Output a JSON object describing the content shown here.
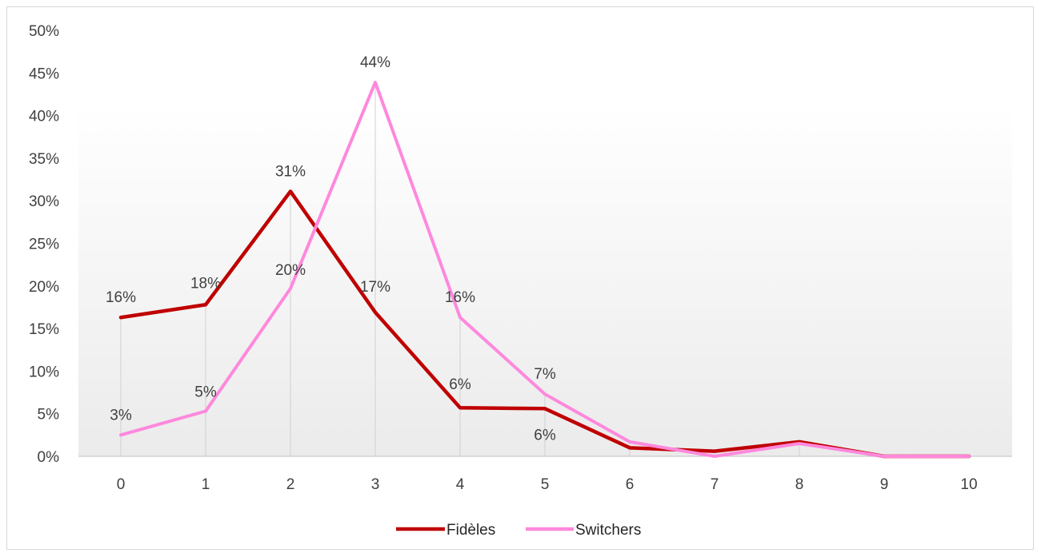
{
  "chart_data": {
    "type": "line",
    "title": "",
    "xlabel": "",
    "ylabel": "",
    "x": [
      0,
      1,
      2,
      3,
      4,
      5,
      6,
      7,
      8,
      9,
      10
    ],
    "x_tick_labels": [
      "0",
      "1",
      "2",
      "3",
      "4",
      "5",
      "6",
      "7",
      "8",
      "9",
      "10"
    ],
    "ylim": [
      0,
      50
    ],
    "y_ticks": [
      0,
      5,
      10,
      15,
      20,
      25,
      30,
      35,
      40,
      45,
      50
    ],
    "y_tick_labels": [
      "0%",
      "5%",
      "10%",
      "15%",
      "20%",
      "25%",
      "30%",
      "35%",
      "40%",
      "45%",
      "50%"
    ],
    "grid": false,
    "drop_lines": true,
    "legend_position": "bottom",
    "series": [
      {
        "name": "Fidèles",
        "color": "#c00000",
        "values": [
          16.3,
          17.8,
          31.1,
          16.9,
          5.7,
          5.6,
          1.0,
          0.6,
          1.7,
          0.0,
          0.0
        ],
        "labels": [
          "16%",
          "18%",
          "31%",
          "17%",
          "6%",
          "6%",
          "",
          "",
          "",
          "",
          ""
        ]
      },
      {
        "name": "Switchers",
        "color": "#ff88dd",
        "values": [
          2.5,
          5.3,
          19.7,
          43.9,
          16.3,
          7.3,
          1.7,
          0.0,
          1.5,
          0.0,
          0.0
        ],
        "labels": [
          "3%",
          "5%",
          "20%",
          "44%",
          "16%",
          "7%",
          "",
          "",
          "",
          "",
          ""
        ]
      }
    ]
  }
}
